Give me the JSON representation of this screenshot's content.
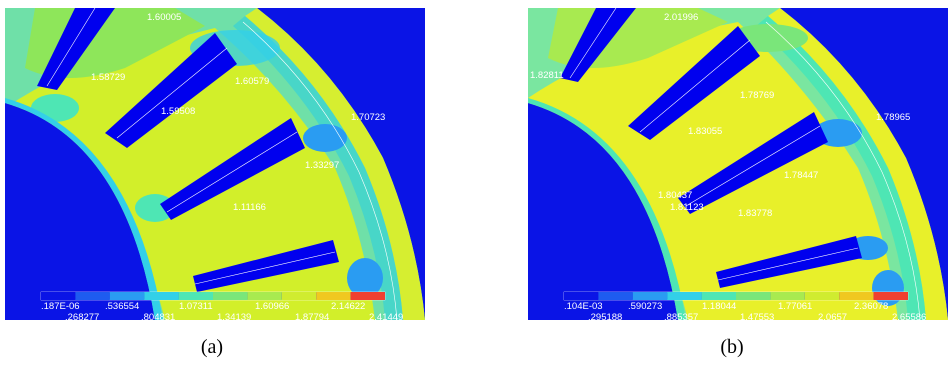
{
  "panels": [
    {
      "caption": "(a)",
      "node_labels": [
        "1.60005",
        "1.58729",
        "1.60579",
        "1.59508",
        "1.70723",
        "1.33297",
        "1.11166"
      ],
      "colorbar_top": [
        ".187E-06",
        ".536554",
        "1.07311",
        "1.60966",
        "2.14622"
      ],
      "colorbar_bottom": [
        ".268277",
        ".804831",
        "1.34139",
        "1.87794",
        "2.41449"
      ]
    },
    {
      "caption": "(b)",
      "node_labels": [
        "2.01996",
        "1.82811",
        "1.78769",
        "1.83055",
        "1.78965",
        "1.80437",
        "1.81123",
        "1.78447",
        "1.83778"
      ],
      "colorbar_top": [
        ".104E-03",
        ".590273",
        "1.18044",
        "1.77061",
        "2.36078"
      ],
      "colorbar_bottom": [
        ".295188",
        ".885357",
        "1.47553",
        "2.0657",
        "2.65586"
      ]
    }
  ],
  "colors": {
    "background": "#0a14e6",
    "slot": "#0000ee",
    "yoke_a": "#d2ef2a",
    "yoke_b": "#e8f02a",
    "tooth_green": "#8ee65a",
    "cyan": "#2dd6e2",
    "colorbar": [
      "#0a14e6",
      "#1e5cf0",
      "#2a9cf2",
      "#33d0e8",
      "#4ee6b4",
      "#7ae67a",
      "#a8ea50",
      "#d0ec30",
      "#f0c820",
      "#ef4030"
    ]
  }
}
